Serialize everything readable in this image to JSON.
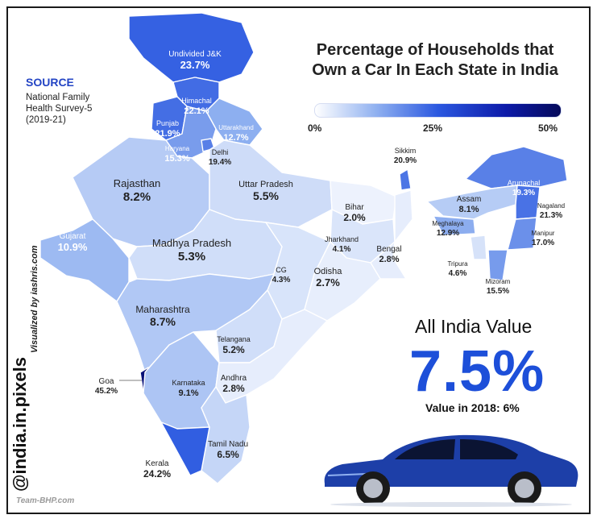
{
  "title_line1": "Percentage of Households that",
  "title_line2": "Own a Car In Each State in India",
  "source": {
    "heading": "SOURCE",
    "line1": "National Family",
    "line2": "Health Survey-5",
    "line3": "(2019-21)"
  },
  "legend": {
    "min_label": "0%",
    "mid_label": "25%",
    "max_label": "50%",
    "colors": [
      "#ffffff",
      "#8fb0f0",
      "#2b58e0",
      "#0c1aa8",
      "#050a5a"
    ]
  },
  "all_india": {
    "title": "All India Value",
    "value": "7.5%",
    "note": "Value in 2018: 6%"
  },
  "credits": {
    "handle": "@india.in.pixels",
    "visualized_by": "Visualized by iashris.com",
    "watermark": "Team-BHP.com"
  },
  "states": [
    {
      "name": "Undivided J&K",
      "value": "23.7%",
      "pct": 23.7
    },
    {
      "name": "Himachal",
      "value": "22.1%",
      "pct": 22.1
    },
    {
      "name": "Punjab",
      "value": "21.9%",
      "pct": 21.9
    },
    {
      "name": "Uttarakhand",
      "value": "12.7%",
      "pct": 12.7
    },
    {
      "name": "Haryana",
      "value": "15.3%",
      "pct": 15.3
    },
    {
      "name": "Delhi",
      "value": "19.4%",
      "pct": 19.4
    },
    {
      "name": "Rajasthan",
      "value": "8.2%",
      "pct": 8.2
    },
    {
      "name": "Uttar Pradesh",
      "value": "5.5%",
      "pct": 5.5
    },
    {
      "name": "Bihar",
      "value": "2.0%",
      "pct": 2.0
    },
    {
      "name": "Sikkim",
      "value": "20.9%",
      "pct": 20.9
    },
    {
      "name": "Arunachal",
      "value": "19.3%",
      "pct": 19.3
    },
    {
      "name": "Assam",
      "value": "8.1%",
      "pct": 8.1
    },
    {
      "name": "Nagaland",
      "value": "21.3%",
      "pct": 21.3
    },
    {
      "name": "Meghalaya",
      "value": "12.9%",
      "pct": 12.9
    },
    {
      "name": "Manipur",
      "value": "17.0%",
      "pct": 17.0
    },
    {
      "name": "Tripura",
      "value": "4.6%",
      "pct": 4.6
    },
    {
      "name": "Mizoram",
      "value": "15.5%",
      "pct": 15.5
    },
    {
      "name": "Gujarat",
      "value": "10.9%",
      "pct": 10.9
    },
    {
      "name": "Madhya Pradesh",
      "value": "5.3%",
      "pct": 5.3
    },
    {
      "name": "Jharkhand",
      "value": "4.1%",
      "pct": 4.1
    },
    {
      "name": "Bengal",
      "value": "2.8%",
      "pct": 2.8
    },
    {
      "name": "CG",
      "value": "4.3%",
      "pct": 4.3
    },
    {
      "name": "Odisha",
      "value": "2.7%",
      "pct": 2.7
    },
    {
      "name": "Maharashtra",
      "value": "8.7%",
      "pct": 8.7
    },
    {
      "name": "Telangana",
      "value": "5.2%",
      "pct": 5.2
    },
    {
      "name": "Goa",
      "value": "45.2%",
      "pct": 45.2
    },
    {
      "name": "Karnataka",
      "value": "9.1%",
      "pct": 9.1
    },
    {
      "name": "Andhra",
      "value": "2.8%",
      "pct": 2.8
    },
    {
      "name": "Tamil Nadu",
      "value": "6.5%",
      "pct": 6.5
    },
    {
      "name": "Kerala",
      "value": "24.2%",
      "pct": 24.2
    }
  ]
}
